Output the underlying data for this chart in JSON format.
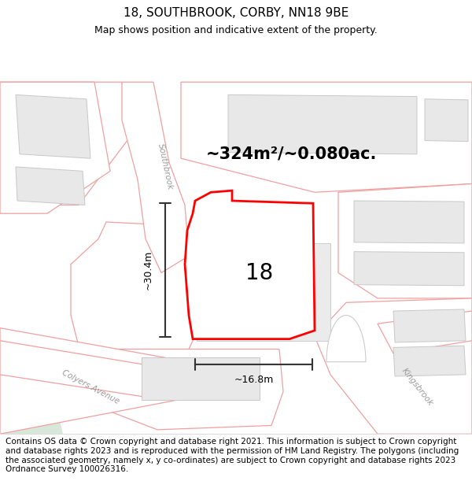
{
  "title": "18, SOUTHBROOK, CORBY, NN18 9BE",
  "subtitle": "Map shows position and indicative extent of the property.",
  "footer": "Contains OS data © Crown copyright and database right 2021. This information is subject to Crown copyright and database rights 2023 and is reproduced with the permission of HM Land Registry. The polygons (including the associated geometry, namely x, y co-ordinates) are subject to Crown copyright and database rights 2023 Ordnance Survey 100026316.",
  "title_fontsize": 11,
  "subtitle_fontsize": 9,
  "footer_fontsize": 7.5,
  "area_text": "~324m²/~0.080ac.",
  "width_text": "~16.8m",
  "height_text": "~30.4m",
  "property_number": "18",
  "map_bg": "#ffffff",
  "road_poly_color": "#f5c8c8",
  "road_poly_edge": "#f0a0a0",
  "building_fill": "#e8e8e8",
  "building_edge": "#c8c8c8",
  "red_poly_color": "red",
  "red_poly_fill": "white",
  "dim_line_color": "#333333",
  "road_label_color": "#888888",
  "green_fill": "#d8e8d8"
}
